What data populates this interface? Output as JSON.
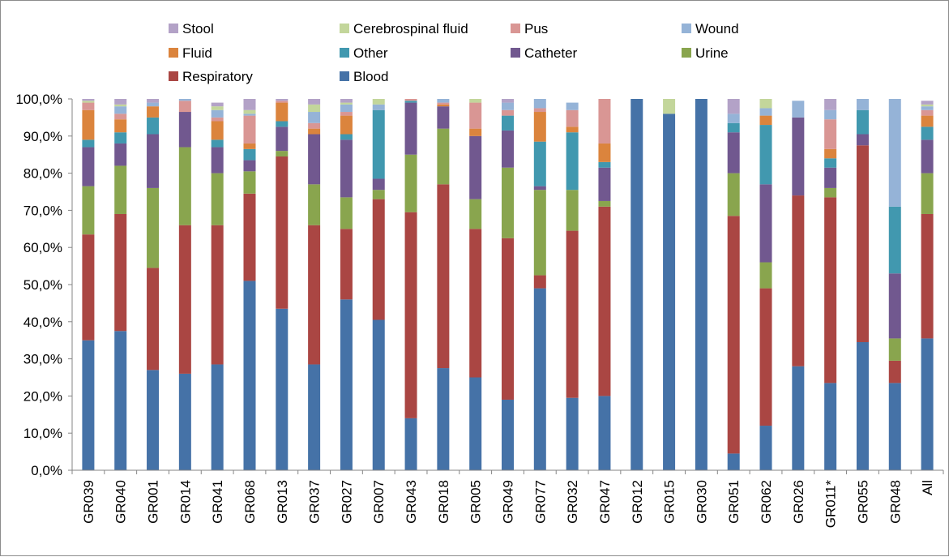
{
  "chart_data": {
    "type": "bar",
    "stacked": true,
    "percent": true,
    "categories": [
      "GR039",
      "GR040",
      "GR001",
      "GR014",
      "GR041",
      "GR068",
      "GR013",
      "GR037",
      "GR027",
      "GR007",
      "GR043",
      "GR018",
      "GR005",
      "GR049",
      "GR077",
      "GR032",
      "GR047",
      "GR012",
      "GR015",
      "GR030",
      "GR051",
      "GR062",
      "GR026",
      "GR011*",
      "GR055",
      "GR048",
      "All"
    ],
    "y_ticks": [
      "0,0%",
      "10,0%",
      "20,0%",
      "30,0%",
      "40,0%",
      "50,0%",
      "60,0%",
      "70,0%",
      "80,0%",
      "90,0%",
      "100,0%"
    ],
    "ylim": [
      0,
      100
    ],
    "grid": false,
    "legend_position": "top",
    "series": [
      {
        "name": "Blood",
        "color": "#4572a7",
        "values": [
          35,
          37.5,
          27,
          26,
          28.5,
          51,
          43.5,
          28.5,
          46,
          40.5,
          14,
          27.5,
          25,
          19,
          49,
          19.5,
          20,
          100,
          96,
          100,
          4.5,
          12,
          28,
          23.5,
          34.5,
          23.5,
          35.5
        ]
      },
      {
        "name": "Respiratory",
        "color": "#aa4643",
        "values": [
          28.5,
          31.5,
          27.5,
          40,
          37.5,
          23.5,
          41,
          37.5,
          19,
          32.5,
          55.5,
          49.5,
          40,
          43.5,
          3.5,
          45,
          51,
          0,
          0,
          0,
          64,
          37,
          46,
          50,
          53,
          6,
          33.5
        ]
      },
      {
        "name": "Urine",
        "color": "#89a54e",
        "values": [
          13,
          13,
          21.5,
          21,
          14,
          6,
          1.5,
          11,
          8.5,
          2.5,
          15.5,
          15,
          8,
          19,
          23,
          11,
          1.5,
          0,
          0,
          0,
          11.5,
          7,
          0,
          2.5,
          0,
          6,
          11
        ]
      },
      {
        "name": "Catheter",
        "color": "#71588f",
        "values": [
          10.5,
          6,
          14.5,
          9.5,
          7,
          3,
          6.5,
          13.5,
          15.5,
          3,
          14,
          6,
          17,
          10,
          1,
          0,
          9,
          0,
          0,
          0,
          11,
          21,
          21,
          5.5,
          3,
          17.5,
          9
        ]
      },
      {
        "name": "Other",
        "color": "#4198af",
        "values": [
          2,
          3,
          4.5,
          0,
          2,
          3,
          1.5,
          0,
          1.5,
          18.5,
          0.5,
          0,
          0,
          4,
          12,
          15.5,
          1.5,
          0,
          0,
          0,
          2.5,
          16,
          0,
          2.5,
          6.5,
          18,
          3.5
        ]
      },
      {
        "name": "Fluid",
        "color": "#db843d",
        "values": [
          8,
          3.5,
          3,
          0,
          5,
          1.5,
          5,
          1.5,
          5,
          0,
          0,
          0.5,
          2,
          0,
          8,
          1.5,
          5,
          0,
          0,
          0,
          0,
          2.5,
          0,
          2.5,
          0,
          0,
          3
        ]
      },
      {
        "name": "Pus",
        "color": "#d99694",
        "values": [
          2,
          1.5,
          0,
          3,
          1,
          7.5,
          0.5,
          1.5,
          1,
          0,
          0.5,
          0.5,
          7,
          1.5,
          1,
          4.5,
          12,
          0,
          0,
          0,
          0,
          0,
          0,
          8,
          0,
          0,
          1.5
        ]
      },
      {
        "name": "Wound",
        "color": "#95b3d7",
        "values": [
          0,
          2,
          1,
          0.5,
          2,
          0.5,
          0,
          3,
          2,
          1.5,
          0,
          1,
          0,
          2,
          2.5,
          2,
          0,
          0,
          0,
          0,
          2.5,
          2,
          4.5,
          2.5,
          3,
          29,
          1
        ]
      },
      {
        "name": "Cerebrospinal fluid",
        "color": "#c3d69b",
        "values": [
          0.5,
          0.5,
          0,
          0,
          1,
          1,
          0,
          2,
          0.5,
          1.5,
          0,
          0,
          1,
          0,
          0,
          0,
          0,
          0,
          4,
          0,
          0,
          2.5,
          0,
          0,
          0,
          0,
          0.5
        ]
      },
      {
        "name": "Stool",
        "color": "#b3a2c7",
        "values": [
          0.5,
          1.5,
          1,
          0,
          1,
          3,
          0.5,
          2,
          1,
          0,
          0,
          0,
          0,
          1,
          0,
          0,
          0,
          0,
          0,
          0,
          4,
          0,
          0,
          5,
          0,
          0,
          1
        ]
      }
    ],
    "legend": [
      [
        "Stool",
        "Cerebrospinal fluid",
        "Pus",
        "Wound"
      ],
      [
        "Fluid",
        "Other",
        "Catheter",
        "Urine"
      ],
      [
        "Respiratory",
        "Blood"
      ]
    ]
  }
}
